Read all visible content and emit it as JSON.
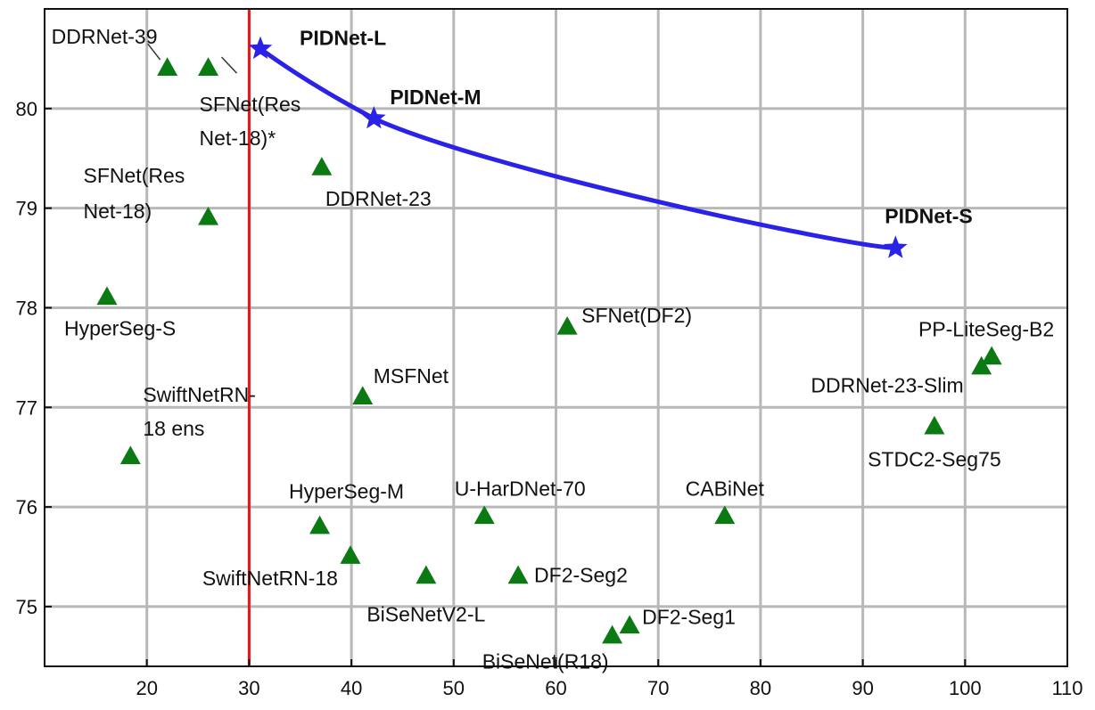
{
  "chart_data": {
    "type": "scatter",
    "title": "",
    "xlabel": "",
    "ylabel": "",
    "xlim": [
      10,
      110
    ],
    "ylim": [
      74.4,
      81.0
    ],
    "x_ticks": [
      20,
      30,
      40,
      50,
      60,
      70,
      80,
      90,
      100,
      110
    ],
    "y_ticks": [
      75,
      76,
      77,
      78,
      79,
      80
    ],
    "grid": true,
    "reference_line_x": 30,
    "colors": {
      "grid": "#b8b8b8",
      "reference_line": "#e8141c",
      "competitor": "#0c7a12",
      "pidnet": "#2a22e6"
    },
    "series": [
      {
        "marker": "triangle",
        "color": "#0c7a12",
        "points": [
          {
            "label": "DDRNet-39",
            "x": 22,
            "y": 80.4
          },
          {
            "label": "SFNet(Res Net-18)*",
            "label_lines": [
              "SFNet(Res",
              "Net-18)*"
            ],
            "x": 26,
            "y": 80.4
          },
          {
            "label": "DDRNet-23",
            "x": 37.1,
            "y": 79.4
          },
          {
            "label": "SFNet(Res Net-18)",
            "label_lines": [
              "SFNet(Res",
              "Net-18)"
            ],
            "x": 26,
            "y": 78.9
          },
          {
            "label": "HyperSeg-S",
            "x": 16.1,
            "y": 78.1
          },
          {
            "label": "SFNet(DF2)",
            "x": 61.1,
            "y": 77.8
          },
          {
            "label": "MSFNet",
            "x": 41.1,
            "y": 77.1
          },
          {
            "label": "SwiftNetRN-18 ens",
            "label_lines": [
              "SwiftNetRN-",
              "18 ens"
            ],
            "x": 18.4,
            "y": 76.5
          },
          {
            "label": "PP-LiteSeg-B2",
            "x": 102.6,
            "y": 77.5
          },
          {
            "label": "DDRNet-23-Slim",
            "x": 101.6,
            "y": 77.4
          },
          {
            "label": "STDC2-Seg75",
            "x": 97.0,
            "y": 76.8
          },
          {
            "label": "HyperSeg-M",
            "x": 36.9,
            "y": 75.8
          },
          {
            "label": "U-HarDNet-70",
            "x": 53.0,
            "y": 75.9
          },
          {
            "label": "CABiNet",
            "x": 76.5,
            "y": 75.9
          },
          {
            "label": "SwiftNetRN-18",
            "x": 39.9,
            "y": 75.5
          },
          {
            "label": "BiSeNetV2-L",
            "x": 47.3,
            "y": 75.3
          },
          {
            "label": "DF2-Seg2",
            "x": 56.3,
            "y": 75.3
          },
          {
            "label": "DF2-Seg1",
            "x": 67.2,
            "y": 74.8
          },
          {
            "label": "BiSeNet(R18)",
            "x": 65.5,
            "y": 74.7
          }
        ]
      },
      {
        "marker": "star",
        "color": "#2a22e6",
        "points": [
          {
            "label": "PIDNet-L",
            "x": 31.1,
            "y": 80.6
          },
          {
            "label": "PIDNet-M",
            "x": 42.2,
            "y": 79.9
          },
          {
            "label": "PIDNet-S",
            "x": 93.2,
            "y": 78.6
          }
        ]
      }
    ]
  }
}
